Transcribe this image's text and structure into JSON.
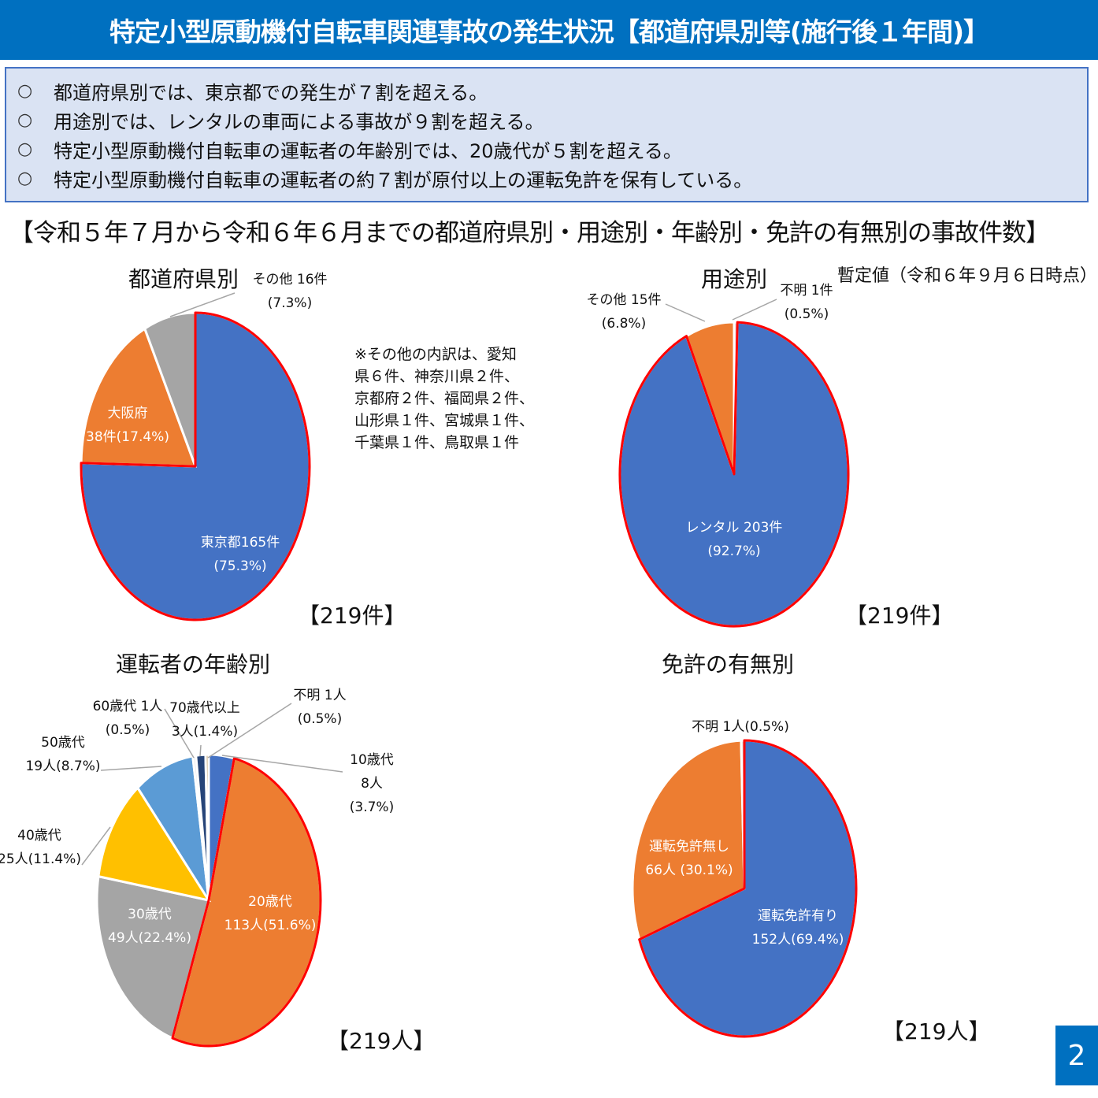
{
  "header": {
    "title": "特定小型原動機付自転車関連事故の発生状況【都道府県別等(施行後１年間)】"
  },
  "summary": {
    "bullet": "○",
    "items": [
      "都道府県別では、東京都での発生が７割を超える。",
      "用途別では、レンタルの車両による事故が９割を超える。",
      "特定小型原動機付自転車の運転者の年齢別では、20歳代が５割を超える。",
      "特定小型原動機付自転車の運転者の約７割が原付以上の運転免許を保有している。"
    ]
  },
  "subtitle": "【令和５年７月から令和６年６月までの都道府県別・用途別・年齢別・免許の有無別の事故件数】",
  "provisional_note": "暫定値（令和６年９月６日時点）",
  "breakdown_note": [
    "※その他の内訳は、愛知",
    "県６件、神奈川県２件、",
    "京都府２件、福岡県２件、",
    "山形県１件、宮城県１件、",
    "千葉県１件、鳥取県１件"
  ],
  "page_number": "2",
  "colors": {
    "header": "#0070c0",
    "summary_bg": "#dae3f3",
    "blue": "#4472c4",
    "orange": "#ed7d31",
    "gray": "#a5a5a5",
    "yellow": "#ffc000",
    "light_blue": "#5b9bd5",
    "navy": "#264478",
    "tan": "#c5a97a",
    "highlight": "#ff0000"
  },
  "chart_data": [
    {
      "type": "pie",
      "title": "都道府県別",
      "total_label": "【219件】",
      "slices": [
        {
          "name": "東京都",
          "value": 165,
          "percent": 75.3,
          "label": [
            "東京都165件",
            "(75.3%)"
          ],
          "color": "#4472c4",
          "highlight": true
        },
        {
          "name": "大阪府",
          "value": 38,
          "percent": 17.4,
          "label": [
            "大阪府",
            "38件(17.4%)"
          ],
          "color": "#ed7d31"
        },
        {
          "name": "その他",
          "value": 16,
          "percent": 7.3,
          "label": [
            "その他 16件",
            "(7.3%)"
          ],
          "color": "#a5a5a5"
        }
      ]
    },
    {
      "type": "pie",
      "title": "用途別",
      "total_label": "【219件】",
      "slices": [
        {
          "name": "不明",
          "value": 1,
          "percent": 0.5,
          "label": [
            "不明 1件",
            "(0.5%)"
          ],
          "color": "#d9d9d9"
        },
        {
          "name": "レンタル",
          "value": 203,
          "percent": 92.7,
          "label": [
            "レンタル 203件",
            "(92.7%)"
          ],
          "color": "#4472c4",
          "highlight": true
        },
        {
          "name": "その他",
          "value": 15,
          "percent": 6.8,
          "label": [
            "その他 15件",
            "(6.8%)"
          ],
          "color": "#ed7d31"
        }
      ]
    },
    {
      "type": "pie",
      "title": "運転者の年齢別",
      "total_label": "【219人】",
      "slices": [
        {
          "name": "10歳代",
          "value": 8,
          "percent": 3.7,
          "label": [
            "10歳代",
            "8人",
            "(3.7%)"
          ],
          "color": "#4472c4"
        },
        {
          "name": "20歳代",
          "value": 113,
          "percent": 51.6,
          "label": [
            "20歳代",
            "113人(51.6%)"
          ],
          "color": "#ed7d31",
          "highlight": true
        },
        {
          "name": "30歳代",
          "value": 49,
          "percent": 22.4,
          "label": [
            "30歳代",
            "49人(22.4%)"
          ],
          "color": "#a5a5a5"
        },
        {
          "name": "40歳代",
          "value": 25,
          "percent": 11.4,
          "label": [
            "40歳代",
            "25人(11.4%)"
          ],
          "color": "#ffc000"
        },
        {
          "name": "50歳代",
          "value": 19,
          "percent": 8.7,
          "label": [
            "50歳代",
            "19人(8.7%)"
          ],
          "color": "#5b9bd5"
        },
        {
          "name": "60歳代",
          "value": 1,
          "percent": 0.5,
          "label": [
            "60歳代 1人",
            "(0.5%)"
          ],
          "color": "#e7e6e6"
        },
        {
          "name": "70歳代以上",
          "value": 3,
          "percent": 1.4,
          "label": [
            "70歳代以上",
            "3人(1.4%)"
          ],
          "color": "#264478"
        },
        {
          "name": "不明",
          "value": 1,
          "percent": 0.5,
          "label": [
            "不明 1人",
            "(0.5%)"
          ],
          "color": "#c5a97a"
        }
      ]
    },
    {
      "type": "pie",
      "title": "免許の有無別",
      "total_label": "【219人】",
      "slices": [
        {
          "name": "運転免許有り",
          "value": 152,
          "percent": 69.4,
          "label": [
            "運転免許有り",
            "152人(69.4%)"
          ],
          "color": "#4472c4",
          "highlight": true
        },
        {
          "name": "運転免許無し",
          "value": 66,
          "percent": 30.1,
          "label": [
            "運転免許無し",
            "66人 (30.1%)"
          ],
          "color": "#ed7d31"
        },
        {
          "name": "不明",
          "value": 1,
          "percent": 0.5,
          "label": [
            "不明 1人(0.5%)"
          ],
          "color": "#d9d9d9"
        }
      ]
    }
  ]
}
